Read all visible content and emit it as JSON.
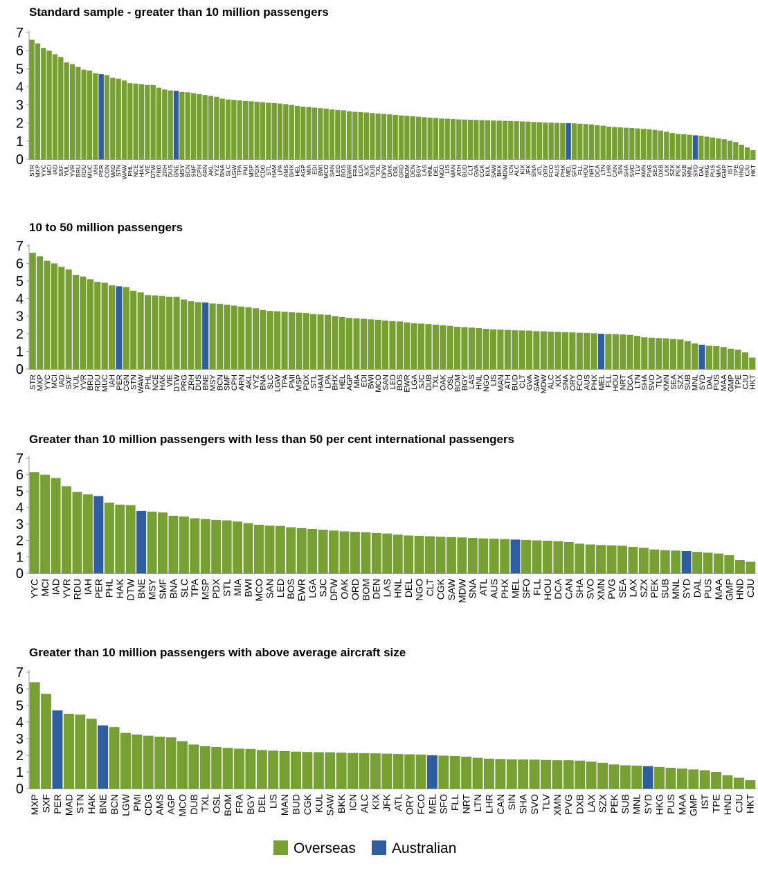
{
  "colors": {
    "overseas": "#76A132",
    "australian": "#2F5E9E",
    "axis": "#9C9C9C"
  },
  "legend": [
    {
      "name": "Overseas",
      "color_key": "overseas"
    },
    {
      "name": "Australian",
      "color_key": "australian"
    }
  ],
  "chart_data": [
    {
      "type": "bar",
      "title": "Standard sample - greater than 10 million passengers",
      "ylim": [
        0,
        7
      ],
      "yticks": [
        0,
        1,
        2,
        3,
        4,
        5,
        6,
        7
      ],
      "categories": [
        "STR",
        "MXP",
        "YYC",
        "MCI",
        "IAD",
        "SXF",
        "YUL",
        "YVR",
        "BRU",
        "RDU",
        "MUC",
        "IAH",
        "PER",
        "CGN",
        "MAD",
        "STN",
        "WAW",
        "PHL",
        "NCE",
        "HAK",
        "VIE",
        "DTW",
        "PRG",
        "ZRH",
        "DUS",
        "BNE",
        "MSY",
        "BCN",
        "SMF",
        "CPH",
        "ARN",
        "AKL",
        "YYZ",
        "BNA",
        "SLC",
        "LGW",
        "TPA",
        "PMI",
        "MSP",
        "PDX",
        "CDG",
        "STL",
        "HAM",
        "LPA",
        "AMS",
        "BHX",
        "HEL",
        "AGP",
        "MIA",
        "EDI",
        "BWI",
        "MCO",
        "SAN",
        "LED",
        "BOS",
        "EWR",
        "FRA",
        "LGA",
        "SJC",
        "DUB",
        "TXL",
        "DFW",
        "OAK",
        "OSL",
        "ORD",
        "BOM",
        "DEN",
        "BGY",
        "LAS",
        "HNL",
        "DEL",
        "NGO",
        "LIS",
        "MAN",
        "ATH",
        "BUD",
        "CLT",
        "GVA",
        "CGK",
        "KUL",
        "SAW",
        "BKK",
        "MDW",
        "ICN",
        "ALC",
        "KIX",
        "JFK",
        "SNA",
        "ATL",
        "ORY",
        "FCO",
        "AUS",
        "PHX",
        "MEL",
        "SFO",
        "FLL",
        "HOU",
        "NRT",
        "DCA",
        "LTN",
        "LHR",
        "CAN",
        "SIN",
        "SHA",
        "SVO",
        "TLV",
        "XMN",
        "PVG",
        "SEA",
        "DXB",
        "LAX",
        "SZX",
        "PEK",
        "SUB",
        "MNL",
        "SYD",
        "DAL",
        "HKG",
        "PUS",
        "MAA",
        "GMP",
        "IST",
        "TPE",
        "HND",
        "CJU",
        "HKT"
      ],
      "values": [
        6.6,
        6.4,
        6.15,
        6.0,
        5.8,
        5.65,
        5.35,
        5.25,
        5.1,
        4.95,
        4.9,
        4.75,
        4.7,
        4.65,
        4.5,
        4.45,
        4.35,
        4.2,
        4.18,
        4.15,
        4.1,
        4.1,
        3.95,
        3.85,
        3.8,
        3.78,
        3.72,
        3.7,
        3.65,
        3.6,
        3.55,
        3.5,
        3.45,
        3.35,
        3.3,
        3.28,
        3.25,
        3.22,
        3.2,
        3.18,
        3.15,
        3.12,
        3.1,
        3.08,
        3.05,
        3.0,
        2.95,
        2.9,
        2.88,
        2.85,
        2.82,
        2.8,
        2.75,
        2.72,
        2.7,
        2.65,
        2.62,
        2.6,
        2.58,
        2.55,
        2.52,
        2.5,
        2.48,
        2.45,
        2.42,
        2.4,
        2.38,
        2.35,
        2.32,
        2.3,
        2.28,
        2.25,
        2.24,
        2.22,
        2.2,
        2.19,
        2.18,
        2.17,
        2.16,
        2.15,
        2.14,
        2.13,
        2.12,
        2.11,
        2.1,
        2.09,
        2.08,
        2.06,
        2.05,
        2.03,
        2.02,
        2.01,
        2.0,
        1.99,
        1.98,
        1.96,
        1.94,
        1.92,
        1.88,
        1.85,
        1.8,
        1.78,
        1.76,
        1.74,
        1.72,
        1.7,
        1.68,
        1.66,
        1.62,
        1.58,
        1.52,
        1.45,
        1.4,
        1.38,
        1.35,
        1.32,
        1.3,
        1.25,
        1.2,
        1.15,
        1.1,
        1.02,
        0.95,
        0.8,
        0.65,
        0.5
      ],
      "highlight": [
        "PER",
        "BNE",
        "MEL",
        "SYD"
      ]
    },
    {
      "type": "bar",
      "title": "10 to 50 million passengers",
      "ylim": [
        0,
        7
      ],
      "yticks": [
        0,
        1,
        2,
        3,
        4,
        5,
        6,
        7
      ],
      "categories": [
        "STR",
        "MXP",
        "YYC",
        "MCI",
        "IAD",
        "SXF",
        "YUL",
        "YVR",
        "BRU",
        "RDU",
        "MUC",
        "IAH",
        "PER",
        "CGN",
        "STN",
        "WAW",
        "PHL",
        "NCE",
        "HAK",
        "VIE",
        "DTW",
        "PRG",
        "ZRH",
        "DUS",
        "BNE",
        "MSY",
        "BCN",
        "SMF",
        "CPH",
        "ARN",
        "AKL",
        "YYZ",
        "BNA",
        "SLC",
        "LGW",
        "TPA",
        "PMI",
        "MSP",
        "PDX",
        "STL",
        "HAM",
        "LPA",
        "BHX",
        "HEL",
        "AGP",
        "MIA",
        "EDI",
        "BWI",
        "MCO",
        "SAN",
        "LED",
        "BOS",
        "EWR",
        "LGA",
        "SJC",
        "DUB",
        "TXL",
        "OAK",
        "OSL",
        "BOM",
        "BGY",
        "LAS",
        "HNL",
        "NGO",
        "LIS",
        "MAN",
        "ATH",
        "BUD",
        "CLT",
        "GVA",
        "SAW",
        "MDW",
        "ALC",
        "KIX",
        "SNA",
        "ORY",
        "FCO",
        "AUS",
        "PHX",
        "MEL",
        "FLL",
        "HOU",
        "NRT",
        "DCA",
        "LTN",
        "SHA",
        "SVO",
        "TLV",
        "XMN",
        "SEA",
        "SZX",
        "SUB",
        "MNL",
        "SYD",
        "DAL",
        "PUS",
        "MAA",
        "GMP",
        "TPE",
        "CJU",
        "HKT"
      ],
      "values": [
        6.6,
        6.4,
        6.15,
        6.0,
        5.8,
        5.65,
        5.35,
        5.25,
        5.1,
        4.95,
        4.9,
        4.75,
        4.7,
        4.65,
        4.45,
        4.35,
        4.2,
        4.18,
        4.15,
        4.1,
        4.1,
        3.95,
        3.85,
        3.8,
        3.78,
        3.72,
        3.7,
        3.65,
        3.6,
        3.55,
        3.5,
        3.45,
        3.35,
        3.3,
        3.28,
        3.25,
        3.22,
        3.2,
        3.18,
        3.12,
        3.1,
        3.08,
        3.0,
        2.95,
        2.9,
        2.88,
        2.85,
        2.82,
        2.8,
        2.75,
        2.72,
        2.7,
        2.65,
        2.6,
        2.58,
        2.55,
        2.52,
        2.48,
        2.45,
        2.4,
        2.38,
        2.35,
        2.32,
        2.28,
        2.25,
        2.24,
        2.22,
        2.2,
        2.19,
        2.18,
        2.15,
        2.14,
        2.12,
        2.11,
        2.09,
        2.08,
        2.06,
        2.05,
        2.03,
        2.0,
        1.99,
        1.98,
        1.96,
        1.94,
        1.88,
        1.8,
        1.78,
        1.76,
        1.74,
        1.7,
        1.68,
        1.58,
        1.45,
        1.38,
        1.32,
        1.3,
        1.25,
        1.15,
        1.1,
        0.95,
        0.65
      ],
      "highlight": [
        "PER",
        "BNE",
        "MEL",
        "SYD"
      ]
    },
    {
      "type": "bar",
      "title": "Greater than 10 million passengers with less than 50 per cent international passengers",
      "ylim": [
        0,
        7
      ],
      "yticks": [
        0,
        1,
        2,
        3,
        4,
        5,
        6,
        7
      ],
      "categories": [
        "YYC",
        "MCI",
        "IAD",
        "YVR",
        "RDU",
        "IAH",
        "PER",
        "PHL",
        "HAK",
        "DTW",
        "BNE",
        "MSY",
        "SMF",
        "BNA",
        "SLC",
        "TPA",
        "MSP",
        "PDX",
        "STL",
        "MIA",
        "BWI",
        "MCO",
        "SAN",
        "LED",
        "BOS",
        "EWR",
        "LGA",
        "SJC",
        "DFW",
        "OAK",
        "ORD",
        "BOM",
        "DEN",
        "LAS",
        "HNL",
        "DEL",
        "NGO",
        "CLT",
        "CGK",
        "SAW",
        "MDW",
        "SNA",
        "ATL",
        "AUS",
        "PHX",
        "MEL",
        "SFO",
        "FLL",
        "HOU",
        "DCA",
        "CAN",
        "SHA",
        "SVO",
        "XMN",
        "PVG",
        "SEA",
        "LAX",
        "SZX",
        "PEK",
        "SUB",
        "MNL",
        "SYD",
        "DAL",
        "PUS",
        "MAA",
        "GMP",
        "HND",
        "CJU"
      ],
      "values": [
        6.15,
        6.0,
        5.8,
        5.3,
        4.95,
        4.8,
        4.7,
        4.3,
        4.18,
        4.15,
        3.8,
        3.75,
        3.7,
        3.5,
        3.45,
        3.35,
        3.3,
        3.25,
        3.22,
        3.15,
        3.05,
        2.95,
        2.9,
        2.88,
        2.8,
        2.75,
        2.7,
        2.65,
        2.6,
        2.55,
        2.52,
        2.5,
        2.45,
        2.42,
        2.35,
        2.3,
        2.28,
        2.25,
        2.22,
        2.2,
        2.18,
        2.15,
        2.12,
        2.1,
        2.08,
        2.05,
        2.03,
        2.0,
        1.98,
        1.95,
        1.9,
        1.8,
        1.75,
        1.72,
        1.7,
        1.68,
        1.6,
        1.55,
        1.45,
        1.4,
        1.38,
        1.35,
        1.3,
        1.25,
        1.2,
        1.1,
        0.8,
        0.7
      ],
      "highlight": [
        "PER",
        "BNE",
        "MEL",
        "SYD"
      ]
    },
    {
      "type": "bar",
      "title": "Greater than 10 million passengers with above average aircraft size",
      "ylim": [
        0,
        7
      ],
      "yticks": [
        0,
        1,
        2,
        3,
        4,
        5,
        6,
        7
      ],
      "categories": [
        "MXP",
        "SXF",
        "PER",
        "MAD",
        "STN",
        "HAK",
        "BNE",
        "BCN",
        "LGW",
        "PMI",
        "CDG",
        "AMS",
        "AGP",
        "MCO",
        "DUB",
        "TXL",
        "OSL",
        "BOM",
        "FRA",
        "BGY",
        "DEL",
        "LIS",
        "MAN",
        "BUD",
        "CGK",
        "KUL",
        "SAW",
        "BKK",
        "ICN",
        "ALC",
        "KIX",
        "JFK",
        "ATL",
        "ORY",
        "FCO",
        "MEL",
        "SFO",
        "FLL",
        "NRT",
        "LTN",
        "LHR",
        "CAN",
        "SIN",
        "SHA",
        "SVO",
        "TLV",
        "XMN",
        "PVG",
        "DXB",
        "LAX",
        "SZX",
        "PEK",
        "SUB",
        "MNL",
        "SYD",
        "HKG",
        "PUS",
        "MAA",
        "GMP",
        "IST",
        "TPE",
        "HND",
        "CJU",
        "HKT"
      ],
      "values": [
        6.4,
        5.7,
        4.7,
        4.5,
        4.45,
        4.2,
        3.8,
        3.7,
        3.35,
        3.25,
        3.18,
        3.12,
        3.08,
        2.85,
        2.65,
        2.55,
        2.5,
        2.45,
        2.4,
        2.38,
        2.32,
        2.28,
        2.25,
        2.22,
        2.2,
        2.19,
        2.18,
        2.16,
        2.14,
        2.13,
        2.12,
        2.1,
        2.08,
        2.06,
        2.05,
        2.0,
        1.98,
        1.96,
        1.92,
        1.85,
        1.8,
        1.78,
        1.76,
        1.75,
        1.74,
        1.72,
        1.7,
        1.7,
        1.68,
        1.62,
        1.55,
        1.45,
        1.4,
        1.38,
        1.35,
        1.3,
        1.25,
        1.2,
        1.15,
        1.1,
        1.0,
        0.8,
        0.65,
        0.5
      ],
      "highlight": [
        "PER",
        "BNE",
        "MEL",
        "SYD"
      ]
    }
  ]
}
